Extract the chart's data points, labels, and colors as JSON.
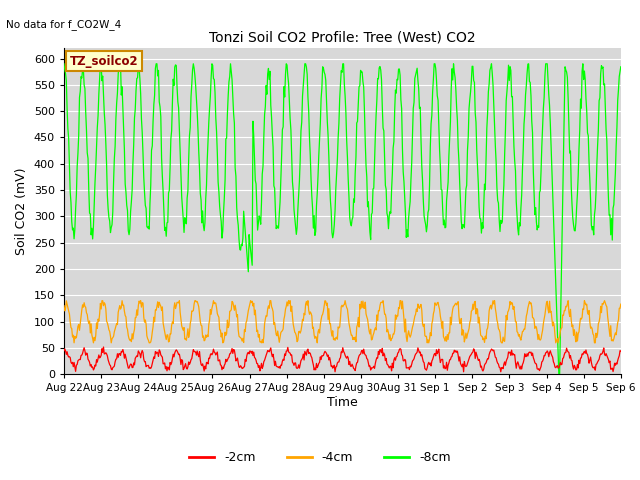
{
  "title": "Tonzi Soil CO2 Profile: Tree (West) CO2",
  "no_data_label": "No data for f_CO2W_4",
  "ylabel": "Soil CO2 (mV)",
  "xlabel": "Time",
  "legend_box_label": "TZ_soilco2",
  "ylim": [
    0,
    620
  ],
  "yticks": [
    0,
    50,
    100,
    150,
    200,
    250,
    300,
    350,
    400,
    450,
    500,
    550,
    600
  ],
  "bg_color": "#d8d8d8",
  "line_8cm_color": "#00ff00",
  "line_4cm_color": "#ffa500",
  "line_2cm_color": "#ff0000",
  "legend_entries": [
    "-2cm",
    "-4cm",
    "-8cm"
  ],
  "legend_colors": [
    "#ff0000",
    "#ffa500",
    "#00ff00"
  ],
  "n_days": 15,
  "cycles_per_day": 2,
  "n_points_per_day": 48,
  "date_labels": [
    "Aug 22",
    "Aug 23",
    "Aug 24",
    "Aug 25",
    "Aug 26",
    "Aug 27",
    "Aug 28",
    "Aug 29",
    "Aug 30",
    "Aug 31",
    "Sep 1",
    "Sep 2",
    "Sep 3",
    "Sep 4",
    "Sep 5",
    "Sep 6"
  ]
}
